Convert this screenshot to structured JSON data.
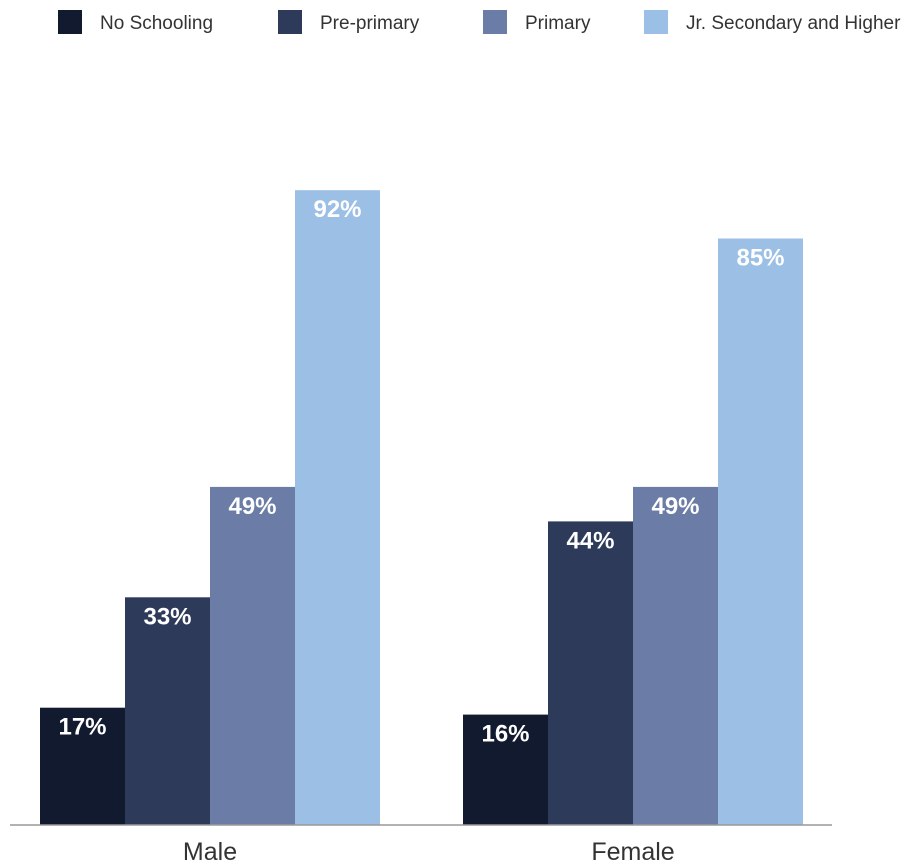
{
  "chart_data": {
    "type": "bar",
    "categories": [
      "Male",
      "Female"
    ],
    "series": [
      {
        "name": "No Schooling",
        "values": [
          17,
          16
        ],
        "labels": [
          "17%",
          "16%"
        ],
        "color": "#111a2e"
      },
      {
        "name": "Pre-primary",
        "values": [
          33,
          44
        ],
        "labels": [
          "33%",
          "44%"
        ],
        "color": "#2e3a5a"
      },
      {
        "name": "Primary",
        "values": [
          49,
          49
        ],
        "labels": [
          "49%",
          "49%"
        ],
        "color": "#6b7ca6"
      },
      {
        "name": "Jr. Secondary and Higher",
        "values": [
          92,
          85
        ],
        "labels": [
          "92%",
          "85%"
        ],
        "color": "#9bbfe5"
      }
    ],
    "ylim": [
      0,
      100
    ],
    "grid": false,
    "legend_position": "top"
  }
}
